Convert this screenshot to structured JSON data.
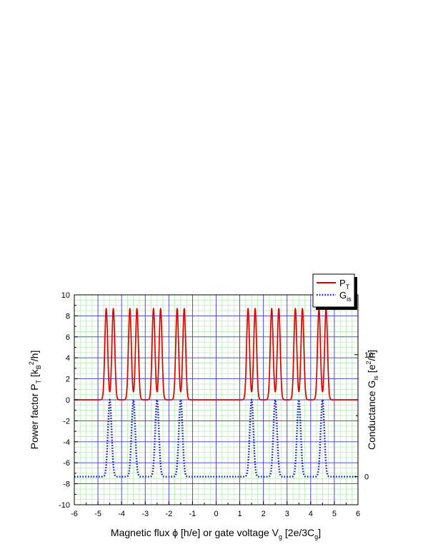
{
  "chart_data": {
    "type": "line",
    "xlabel": "Magnetic flux ϕ [h/e] or gate voltage V",
    "xlabel_sub": "g",
    "xlabel_tail": " [2e/3C",
    "xlabel_tail_sub": "g",
    "xlabel_end": "]",
    "ylabel_left": "Power factor P",
    "ylabel_left_sub": "T",
    "ylabel_left_mid": " [k",
    "ylabel_left_mid_sub": "B",
    "ylabel_left_sup": "2",
    "ylabel_left_end": "/h]",
    "ylabel_right": "Conductance G",
    "ylabel_right_sub": "is",
    "ylabel_right_mid": " [e",
    "ylabel_right_sup": "2",
    "ylabel_right_end": "/h]",
    "xlim": [
      -6,
      6
    ],
    "ylim_left": [
      -10,
      10
    ],
    "ylim_right": [
      -2.3,
      14.9
    ],
    "x_ticks": [
      "-6",
      "-5",
      "-4",
      "-3",
      "-2",
      "-1",
      "0",
      "1",
      "2",
      "3",
      "4",
      "5",
      "6"
    ],
    "y_ticks_left": [
      "-10",
      "-8",
      "-6",
      "-4",
      "-2",
      "0",
      "2",
      "4",
      "6",
      "8",
      "10"
    ],
    "y_ticks_right": [
      "0",
      "10"
    ],
    "grid": true,
    "legend_position": "top-right",
    "colors": {
      "major_grid": "#3b3bd6",
      "minor_grid": "#b9ecb9",
      "pt": "#e00000",
      "gis": "#1616d0"
    },
    "series": [
      {
        "name": "P",
        "name_sub": "T",
        "axis": "left",
        "style": "solid",
        "peak_value": 8.7,
        "baseline": 0,
        "peak_centers": [
          -4.65,
          -4.35,
          -3.65,
          -3.35,
          -2.65,
          -2.35,
          -1.65,
          -1.35,
          1.35,
          1.65,
          2.35,
          2.65,
          3.35,
          3.65,
          4.35,
          4.65
        ],
        "peak_width": 0.085
      },
      {
        "name": "G",
        "name_sub": "is",
        "axis": "right",
        "style": "dotted",
        "peak_value": 6.3,
        "baseline": 0,
        "peak_centers": [
          -4.5,
          -3.5,
          -2.5,
          -1.5,
          1.5,
          2.5,
          3.5,
          4.5
        ],
        "peak_width": 0.11
      }
    ]
  }
}
